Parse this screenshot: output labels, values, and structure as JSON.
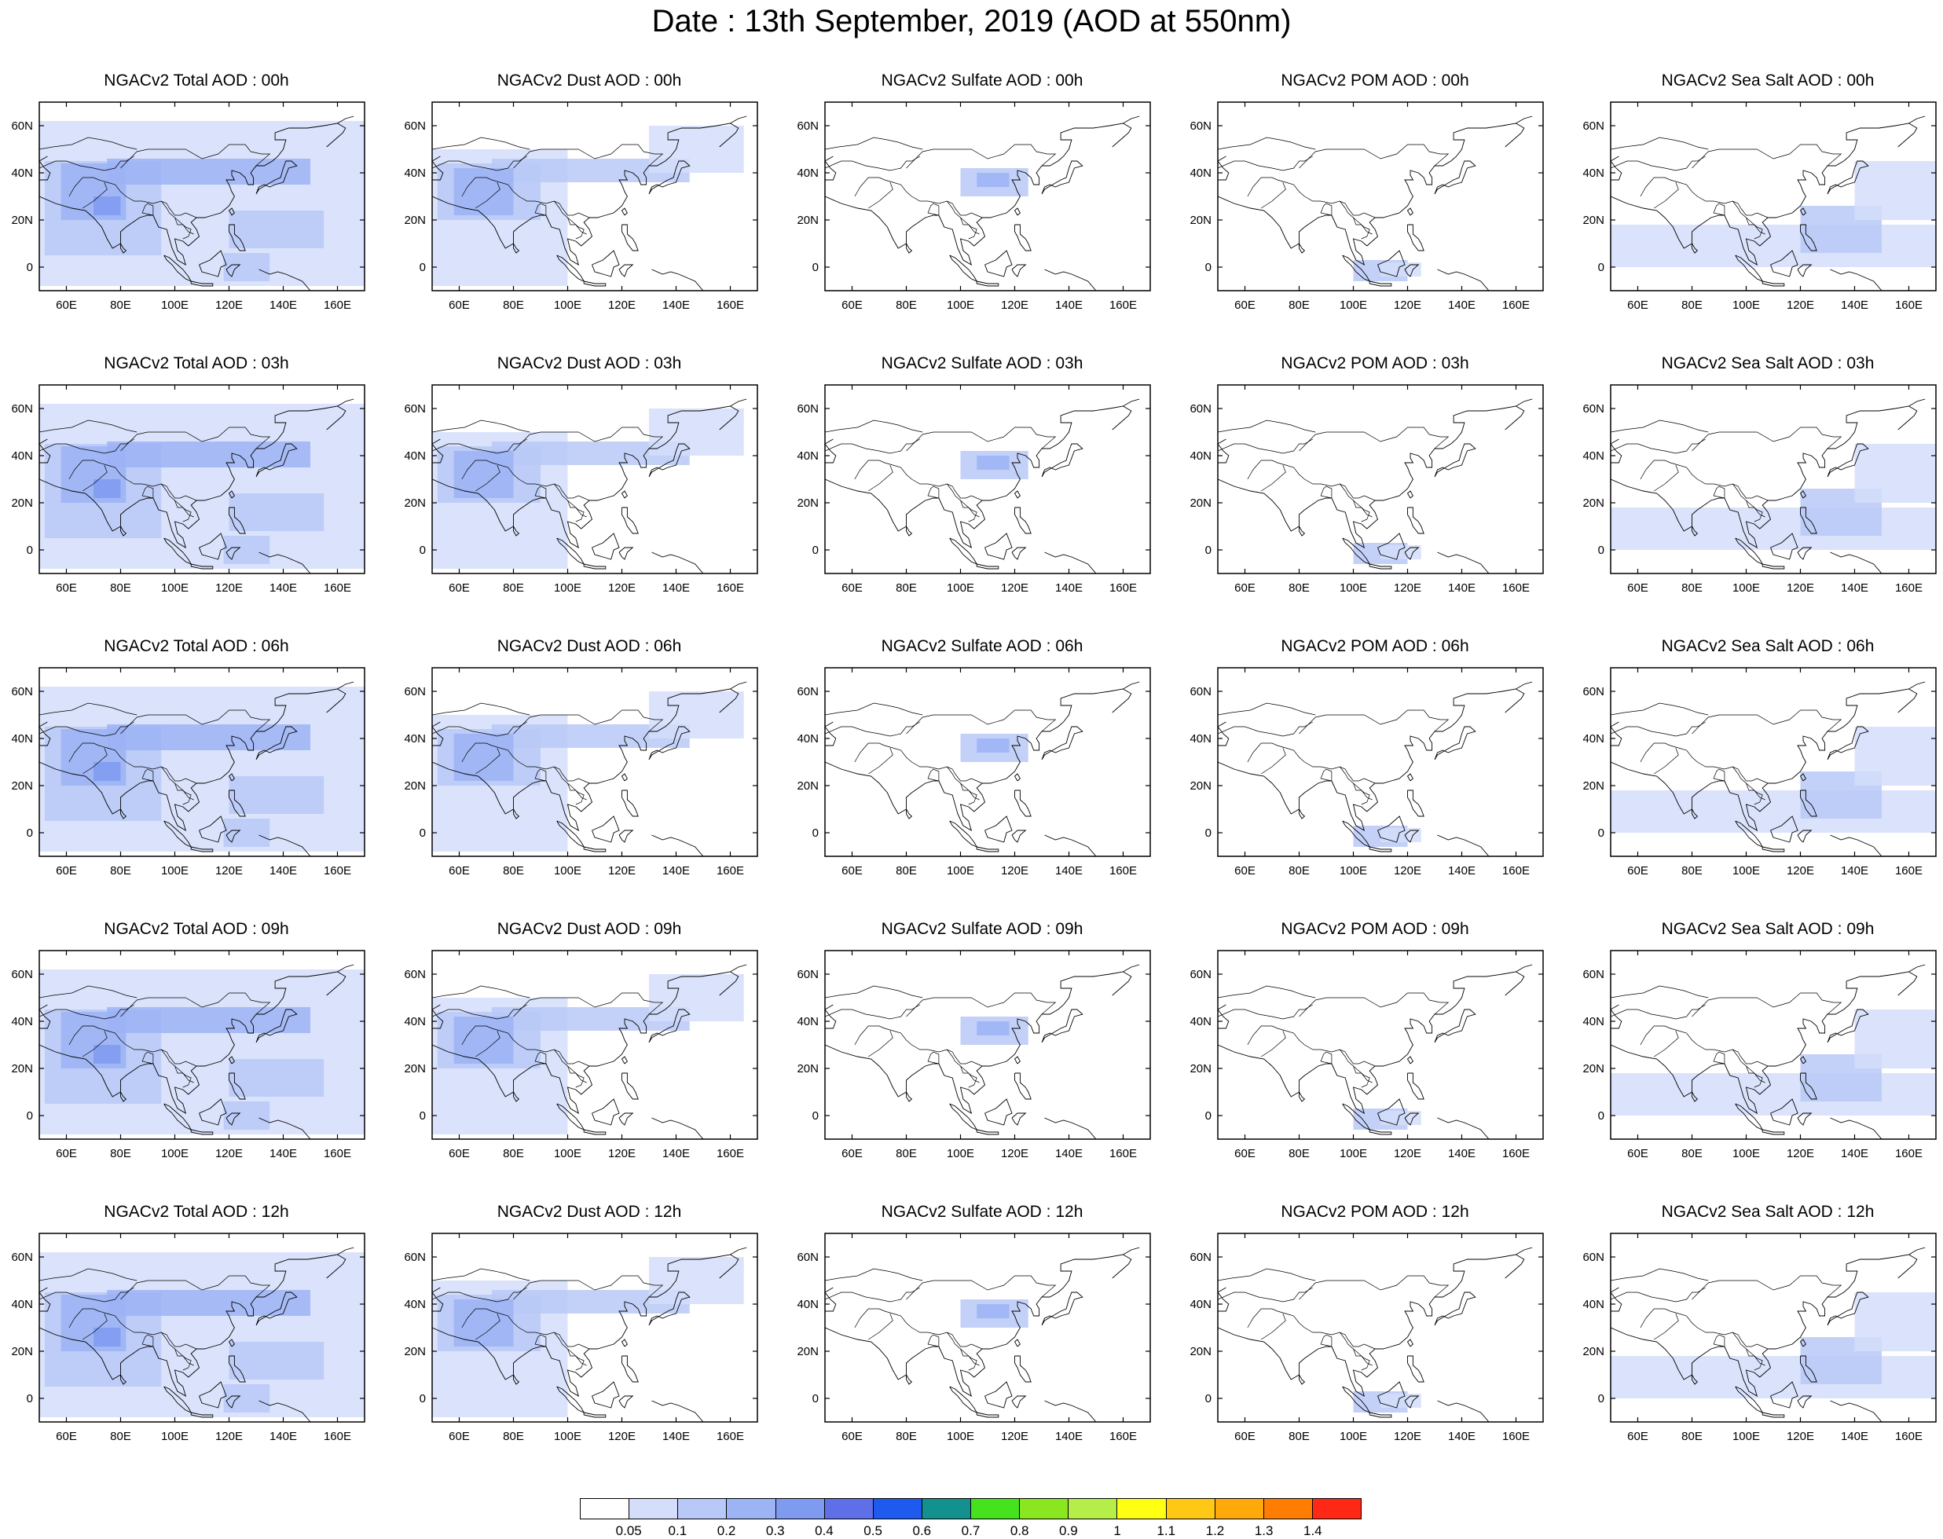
{
  "title": "Date : 13th September, 2019 (AOD at 550nm)",
  "map": {
    "lon_range": [
      50,
      170
    ],
    "lat_range": [
      -10,
      70
    ],
    "lon_ticks": [
      "60E",
      "80E",
      "100E",
      "120E",
      "140E",
      "160E"
    ],
    "lat_ticks": [
      "60N",
      "40N",
      "20N",
      "0"
    ]
  },
  "rows": [
    [
      "NGACv2 Total AOD : 00h",
      "NGACv2 Dust AOD : 00h",
      "NGACv2 Sulfate AOD : 00h",
      "NGACv2 POM AOD : 00h",
      "NGACv2 Sea Salt AOD : 00h"
    ],
    [
      "NGACv2 Total AOD : 03h",
      "NGACv2 Dust AOD : 03h",
      "NGACv2 Sulfate AOD : 03h",
      "NGACv2 POM AOD : 03h",
      "NGACv2 Sea Salt AOD : 03h"
    ],
    [
      "NGACv2 Total AOD : 06h",
      "NGACv2 Dust AOD : 06h",
      "NGACv2 Sulfate AOD : 06h",
      "NGACv2 POM AOD : 06h",
      "NGACv2 Sea Salt AOD : 06h"
    ],
    [
      "NGACv2 Total AOD : 09h",
      "NGACv2 Dust AOD : 09h",
      "NGACv2 Sulfate AOD : 09h",
      "NGACv2 POM AOD : 09h",
      "NGACv2 Sea Salt  AOD : 09h"
    ],
    [
      "NGACv2 Total AOD  : 12h",
      "NGACv2 Dust AOD : 12h",
      "NGACv2 Sulfate AOD : 12h",
      "NGACv2 POM  AOD : 12h",
      "NGACv2 Sea Salt  AOD : 12h"
    ]
  ],
  "colorbar": {
    "colors": [
      "#ffffff",
      "#d4defa",
      "#b8c9f7",
      "#9cb3f4",
      "#7f9bf0",
      "#5f6fe8",
      "#1f5af0",
      "#12918f",
      "#46e21e",
      "#8ae61e",
      "#b5ee48",
      "#ffff14",
      "#ffc814",
      "#ffaa0a",
      "#ff7d00",
      "#ff2814"
    ],
    "labels": [
      "0.05",
      "0.1",
      "0.2",
      "0.3",
      "0.4",
      "0.5",
      "0.6",
      "0.7",
      "0.8",
      "0.9",
      "1",
      "1.1",
      "1.2",
      "1.3",
      "1.4"
    ]
  }
}
